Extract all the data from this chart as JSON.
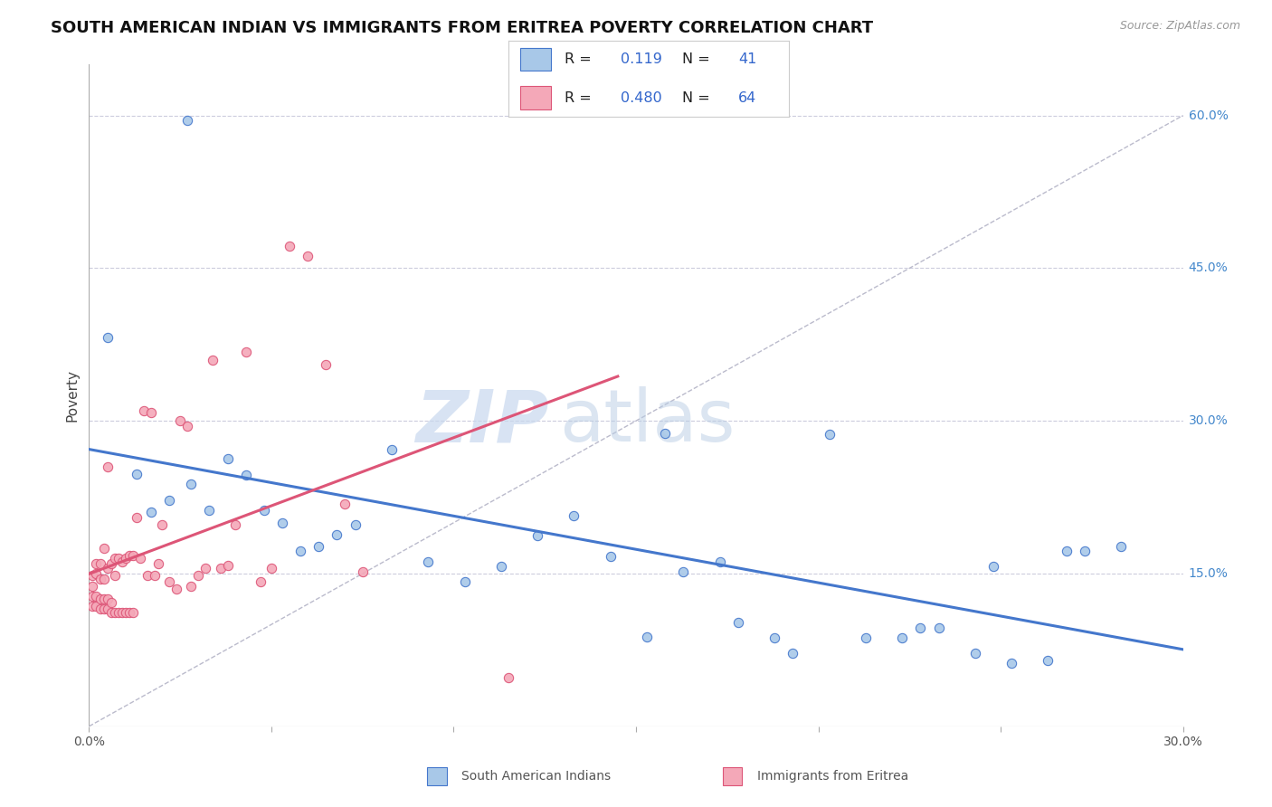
{
  "title": "SOUTH AMERICAN INDIAN VS IMMIGRANTS FROM ERITREA POVERTY CORRELATION CHART",
  "source": "Source: ZipAtlas.com",
  "ylabel": "Poverty",
  "ytick_vals": [
    0.15,
    0.3,
    0.45,
    0.6
  ],
  "ytick_labels": [
    "15.0%",
    "30.0%",
    "45.0%",
    "60.0%"
  ],
  "xmin": 0.0,
  "xmax": 0.3,
  "ymin": 0.0,
  "ymax": 0.65,
  "legend_R1": "0.119",
  "legend_N1": "41",
  "legend_R2": "0.480",
  "legend_N2": "64",
  "color_blue": "#a8c8e8",
  "color_pink": "#f4a8b8",
  "line_blue": "#4477cc",
  "line_pink": "#dd5577",
  "line_diag": "#bbbbcc",
  "watermark_zip": "ZIP",
  "watermark_atlas": "atlas",
  "label1": "South American Indians",
  "label2": "Immigrants from Eritrea",
  "blue_x": [
    0.027,
    0.005,
    0.013,
    0.017,
    0.022,
    0.028,
    0.033,
    0.038,
    0.043,
    0.048,
    0.053,
    0.058,
    0.063,
    0.068,
    0.073,
    0.083,
    0.093,
    0.103,
    0.113,
    0.123,
    0.133,
    0.143,
    0.153,
    0.163,
    0.173,
    0.178,
    0.188,
    0.193,
    0.203,
    0.213,
    0.223,
    0.228,
    0.233,
    0.243,
    0.253,
    0.263,
    0.268,
    0.273,
    0.283,
    0.248,
    0.158
  ],
  "blue_y": [
    0.595,
    0.382,
    0.248,
    0.21,
    0.222,
    0.238,
    0.212,
    0.263,
    0.247,
    0.212,
    0.2,
    0.172,
    0.177,
    0.188,
    0.198,
    0.272,
    0.162,
    0.142,
    0.157,
    0.187,
    0.207,
    0.167,
    0.088,
    0.152,
    0.162,
    0.102,
    0.087,
    0.072,
    0.287,
    0.087,
    0.087,
    0.097,
    0.097,
    0.072,
    0.062,
    0.065,
    0.172,
    0.172,
    0.177,
    0.157,
    0.288
  ],
  "pink_x": [
    0.001,
    0.001,
    0.001,
    0.001,
    0.002,
    0.002,
    0.002,
    0.002,
    0.003,
    0.003,
    0.003,
    0.003,
    0.004,
    0.004,
    0.004,
    0.004,
    0.005,
    0.005,
    0.005,
    0.005,
    0.006,
    0.006,
    0.006,
    0.007,
    0.007,
    0.007,
    0.008,
    0.008,
    0.009,
    0.009,
    0.01,
    0.01,
    0.011,
    0.011,
    0.012,
    0.012,
    0.013,
    0.014,
    0.015,
    0.016,
    0.017,
    0.018,
    0.019,
    0.02,
    0.022,
    0.024,
    0.025,
    0.027,
    0.028,
    0.03,
    0.032,
    0.034,
    0.036,
    0.038,
    0.04,
    0.043,
    0.047,
    0.05,
    0.055,
    0.06,
    0.065,
    0.07,
    0.075,
    0.115
  ],
  "pink_y": [
    0.118,
    0.128,
    0.138,
    0.148,
    0.118,
    0.128,
    0.15,
    0.16,
    0.115,
    0.125,
    0.145,
    0.16,
    0.115,
    0.125,
    0.145,
    0.175,
    0.115,
    0.125,
    0.155,
    0.255,
    0.112,
    0.122,
    0.16,
    0.112,
    0.148,
    0.165,
    0.112,
    0.165,
    0.112,
    0.162,
    0.112,
    0.165,
    0.112,
    0.168,
    0.112,
    0.168,
    0.205,
    0.165,
    0.31,
    0.148,
    0.308,
    0.148,
    0.16,
    0.198,
    0.142,
    0.135,
    0.3,
    0.295,
    0.138,
    0.148,
    0.155,
    0.36,
    0.155,
    0.158,
    0.198,
    0.368,
    0.142,
    0.155,
    0.472,
    0.462,
    0.355,
    0.218,
    0.152,
    0.048
  ]
}
